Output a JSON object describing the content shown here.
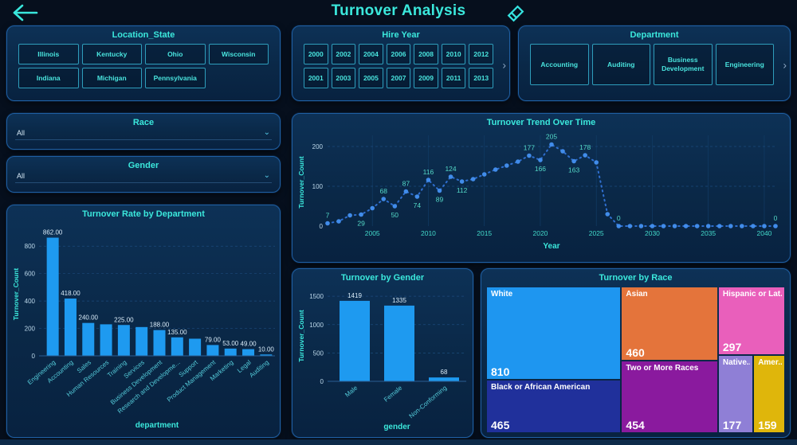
{
  "header": {
    "title": "Turnover Analysis"
  },
  "icons": {
    "scroll_right": "›",
    "dropdown_chevron": "⌄"
  },
  "slicers": {
    "location_state": {
      "title": "Location_State",
      "items": [
        "Illinois",
        "Kentucky",
        "Ohio",
        "Wisconsin",
        "Indiana",
        "Michigan",
        "Pennsylvania"
      ]
    },
    "hire_year": {
      "title": "Hire Year",
      "rows": [
        [
          "2000",
          "2002",
          "2004",
          "2006",
          "2008",
          "2010",
          "2012"
        ],
        [
          "2001",
          "2003",
          "2005",
          "2007",
          "2009",
          "2011",
          "2013"
        ]
      ]
    },
    "department": {
      "title": "Department",
      "items": [
        "Accounting",
        "Auditing",
        "Business Development",
        "Engineering"
      ]
    },
    "race": {
      "title": "Race",
      "value": "All"
    },
    "gender": {
      "title": "Gender",
      "value": "All"
    }
  },
  "chart_data": [
    {
      "id": "dept_bar",
      "type": "bar",
      "title": "Turnover Rate by Department",
      "xlabel": "department",
      "ylabel": "Turnover_Count",
      "ylim": [
        0,
        900
      ],
      "yticks": [
        0,
        200,
        400,
        600,
        800
      ],
      "grid": true,
      "categories": [
        "Engineering",
        "Accounting",
        "Sales",
        "Human Resources",
        "Training",
        "Services",
        "Business Development",
        "Research and Developme...",
        "Support",
        "Product Management",
        "Marketing",
        "Legal",
        "Auditing"
      ],
      "values": [
        862,
        418,
        240,
        230,
        225,
        210,
        188,
        135,
        125,
        79,
        53,
        49,
        10
      ],
      "value_labels": [
        "862.00",
        "418.00",
        "240.00",
        "",
        "225.00",
        "",
        "188.00",
        "135.00",
        "",
        "79.00",
        "53.00",
        "49.00",
        "10.00"
      ]
    },
    {
      "id": "trend_line",
      "type": "line",
      "title": "Turnover Trend Over Time",
      "xlabel": "Year",
      "ylabel": "Turnover_Count",
      "ylim": [
        0,
        220
      ],
      "yticks": [
        0,
        100,
        200
      ],
      "xticks": [
        2005,
        2010,
        2015,
        2020,
        2025,
        2030,
        2035,
        2040
      ],
      "grid": true,
      "points": [
        [
          2001,
          7,
          "7",
          "a"
        ],
        [
          2002,
          12,
          "",
          ""
        ],
        [
          2003,
          27,
          "",
          ""
        ],
        [
          2004,
          29,
          "29",
          "b"
        ],
        [
          2005,
          45,
          "",
          ""
        ],
        [
          2006,
          68,
          "68",
          "a"
        ],
        [
          2007,
          50,
          "50",
          "b"
        ],
        [
          2008,
          87,
          "87",
          "a"
        ],
        [
          2009,
          74,
          "74",
          "b"
        ],
        [
          2010,
          116,
          "116",
          "a"
        ],
        [
          2011,
          89,
          "89",
          "b"
        ],
        [
          2012,
          124,
          "124",
          "a"
        ],
        [
          2013,
          112,
          "112",
          "b"
        ],
        [
          2014,
          118,
          "",
          ""
        ],
        [
          2015,
          130,
          "",
          ""
        ],
        [
          2016,
          142,
          "",
          ""
        ],
        [
          2017,
          152,
          "",
          ""
        ],
        [
          2018,
          162,
          "",
          ""
        ],
        [
          2019,
          177,
          "177",
          "a"
        ],
        [
          2020,
          166,
          "166",
          "b"
        ],
        [
          2021,
          205,
          "205",
          "a"
        ],
        [
          2022,
          188,
          "",
          ""
        ],
        [
          2023,
          163,
          "163",
          "b"
        ],
        [
          2024,
          178,
          "178",
          "a"
        ],
        [
          2025,
          160,
          "",
          ""
        ],
        [
          2026,
          30,
          "",
          ""
        ],
        [
          2027,
          0,
          "0",
          "a"
        ],
        [
          2028,
          0,
          "",
          ""
        ],
        [
          2029,
          0,
          "",
          ""
        ],
        [
          2030,
          0,
          "",
          ""
        ],
        [
          2031,
          0,
          "",
          ""
        ],
        [
          2032,
          0,
          "",
          ""
        ],
        [
          2033,
          0,
          "",
          ""
        ],
        [
          2034,
          0,
          "",
          ""
        ],
        [
          2035,
          0,
          "",
          ""
        ],
        [
          2036,
          0,
          "",
          ""
        ],
        [
          2037,
          0,
          "",
          ""
        ],
        [
          2038,
          0,
          "",
          ""
        ],
        [
          2039,
          0,
          "",
          ""
        ],
        [
          2040,
          0,
          "",
          ""
        ],
        [
          2041,
          0,
          "0",
          "a"
        ]
      ]
    },
    {
      "id": "gender_bar",
      "type": "bar",
      "title": "Turnover by Gender",
      "xlabel": "gender",
      "ylabel": "Turnover_Count",
      "ylim": [
        0,
        1600
      ],
      "yticks": [
        0,
        500,
        1000,
        1500
      ],
      "grid": true,
      "categories": [
        "Male",
        "Female",
        "Non-Conforming"
      ],
      "values": [
        1419,
        1335,
        68
      ],
      "value_labels": [
        "1419",
        "1335",
        "68"
      ]
    },
    {
      "id": "race_treemap",
      "type": "treemap",
      "title": "Turnover by Race",
      "tiles": [
        {
          "name": "White",
          "value": 810,
          "color": "#1E96F0"
        },
        {
          "name": "Black or African American",
          "value": 465,
          "color": "#20309B"
        },
        {
          "name": "Asian",
          "value": 460,
          "color": "#E4743B"
        },
        {
          "name": "Two or More Races",
          "value": 454,
          "color": "#8A1A9E"
        },
        {
          "name": "Hispanic or Lat...",
          "value": 297,
          "color": "#E95FBB"
        },
        {
          "name": "Native...",
          "value": 177,
          "color": "#8F7FD6"
        },
        {
          "name": "Amer...",
          "value": 159,
          "color": "#DFB60B"
        }
      ]
    }
  ],
  "colors": {
    "bar_fill": "#1E9AF0",
    "line_stroke": "#2F6FD0",
    "marker_fill": "#418CEA",
    "data_label": "#54D9C7",
    "ytick_text": "#BCD8EA",
    "xtick_text": "#43D9C9",
    "category_text": "#54CBD9",
    "value_label_text": "#D9ECF9",
    "axis_title": "#3BE8DC",
    "gridline": "#1B4A7C"
  }
}
